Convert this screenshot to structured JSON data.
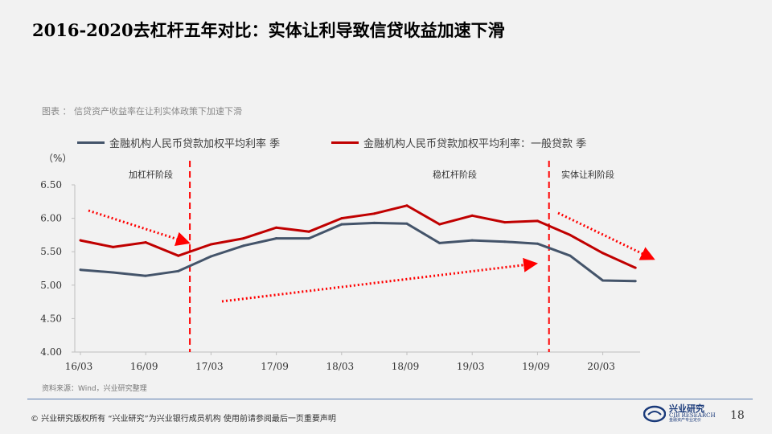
{
  "slide": {
    "title": "2016-2020去杠杆五年对比：实体让利导致信贷收益加速下滑",
    "caption": "图表 ： 信贷资产收益率在让利实体政策下加速下滑",
    "source": "资料来源：Wind，兴业研究整理",
    "copyright": "©  兴业研究版权所有    “兴业研究”为兴业银行成员机构    使用前请参阅最后一页重要声明",
    "logo_cn": "兴业研究",
    "logo_en": "CIB RESEARCH",
    "logo_sub": "金融资产专业定价",
    "page_number": "18"
  },
  "colors": {
    "series1": "#44546a",
    "series2": "#c00000",
    "annotation": "#ff0000",
    "axis": "#bfbfbf",
    "footer_line": "#5a7db0"
  },
  "chart_data": {
    "type": "line",
    "unit_label": "（%）",
    "ylim": [
      4.0,
      6.5
    ],
    "yticks": [
      "4.00",
      "4.50",
      "5.00",
      "5.50",
      "6.00",
      "6.50"
    ],
    "xtick_labels": [
      "16/03",
      "16/09",
      "17/03",
      "17/09",
      "18/03",
      "18/09",
      "19/03",
      "19/09",
      "20/03"
    ],
    "x": [
      "16/03",
      "16/06",
      "16/09",
      "16/12",
      "17/03",
      "17/06",
      "17/09",
      "17/12",
      "18/03",
      "18/06",
      "18/09",
      "18/12",
      "19/03",
      "19/06",
      "19/09",
      "19/12",
      "20/03",
      "20/06"
    ],
    "series": [
      {
        "name": "金融机构人民币贷款加权平均利率 季",
        "color": "#44546a",
        "values": [
          5.23,
          5.19,
          5.14,
          5.21,
          5.43,
          5.59,
          5.7,
          5.7,
          5.91,
          5.93,
          5.92,
          5.63,
          5.67,
          5.65,
          5.62,
          5.44,
          5.07,
          5.06
        ]
      },
      {
        "name": "金融机构人民币贷款加权平均利率：一般贷款 季",
        "color": "#c00000",
        "values": [
          5.67,
          5.57,
          5.64,
          5.44,
          5.61,
          5.7,
          5.86,
          5.8,
          6.0,
          6.07,
          6.19,
          5.91,
          6.04,
          5.94,
          5.96,
          5.75,
          5.48,
          5.26
        ]
      }
    ],
    "stages": [
      "加杠杆阶段",
      "稳杠杆阶段",
      "实体让利阶段"
    ],
    "dividers_after": [
      "16/12",
      "19/09"
    ],
    "grid": false
  }
}
